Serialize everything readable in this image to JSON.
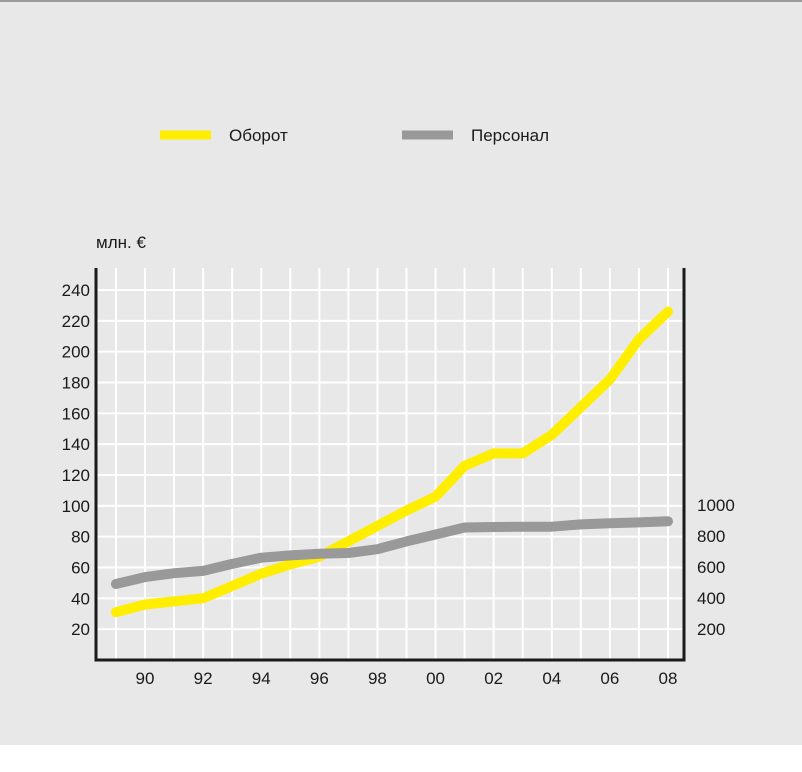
{
  "chart_data": {
    "type": "line",
    "left_axis_label": "млн. €",
    "x_ticks": [
      "90",
      "92",
      "94",
      "96",
      "98",
      "00",
      "02",
      "04",
      "06",
      "08"
    ],
    "left_y_ticks": [
      20,
      40,
      60,
      80,
      100,
      120,
      140,
      160,
      180,
      200,
      220,
      240
    ],
    "right_y_ticks": [
      200,
      400,
      600,
      800,
      1000
    ],
    "left_ylim": [
      0,
      250
    ],
    "right_ylim": [
      0,
      1250
    ],
    "xlim": [
      1988.5,
      2008.5
    ],
    "grid": true,
    "legend_position": "top",
    "series": [
      {
        "name": "Оборот",
        "axis": "left",
        "color": "#ffee00",
        "x": [
          1989,
          1990,
          1992,
          1993,
          1994,
          1995,
          1996,
          1997,
          1998,
          1999,
          2000,
          2001,
          2002,
          2003,
          2004,
          2005,
          2006,
          2007,
          2008
        ],
        "y": [
          31,
          36,
          40,
          48,
          56,
          62,
          67,
          77,
          87,
          97,
          106,
          126,
          134,
          134,
          146,
          164,
          182,
          208,
          226
        ]
      },
      {
        "name": "Персонал",
        "axis": "right",
        "color": "#999999",
        "x": [
          1989,
          1990,
          1991,
          1992,
          1993,
          1994,
          1995,
          1996,
          1997,
          1998,
          1999,
          2000,
          2001,
          2002,
          2003,
          2004,
          2005,
          2006,
          2007,
          2008
        ],
        "y": [
          490,
          535,
          560,
          575,
          620,
          660,
          675,
          685,
          690,
          715,
          765,
          810,
          855,
          858,
          860,
          860,
          875,
          882,
          888,
          895
        ]
      }
    ]
  }
}
